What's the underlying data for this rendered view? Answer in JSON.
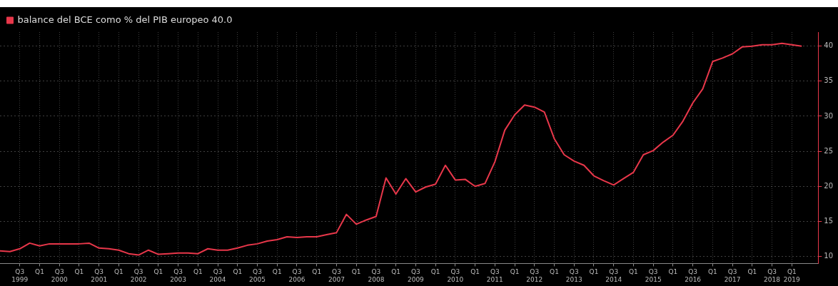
{
  "chart_data": {
    "type": "line",
    "legend": "top left",
    "grid": true,
    "marker": "none",
    "line_style": "solid",
    "series": [
      {
        "name": "balance del BCE como % del PIB europeo 40.0",
        "color": "#e8374a",
        "x": [
          "1999-01",
          "1999-04",
          "1999-07",
          "1999-10",
          "2000-01",
          "2000-04",
          "2000-07",
          "2000-10",
          "2001-01",
          "2001-04",
          "2001-07",
          "2001-10",
          "2002-01",
          "2002-04",
          "2002-07",
          "2002-10",
          "2003-01",
          "2003-04",
          "2003-07",
          "2003-10",
          "2004-01",
          "2004-04",
          "2004-07",
          "2004-10",
          "2005-01",
          "2005-04",
          "2005-07",
          "2005-10",
          "2006-01",
          "2006-04",
          "2006-07",
          "2006-10",
          "2007-01",
          "2007-04",
          "2007-07",
          "2007-10",
          "2008-01",
          "2008-04",
          "2008-07",
          "2008-10",
          "2009-01",
          "2009-04",
          "2009-07",
          "2009-10",
          "2010-01",
          "2010-04",
          "2010-07",
          "2010-10",
          "2011-01",
          "2011-04",
          "2011-07",
          "2011-10",
          "2012-01",
          "2012-04",
          "2012-07",
          "2012-10",
          "2013-01",
          "2013-04",
          "2013-07",
          "2013-10",
          "2014-01",
          "2014-04",
          "2014-07",
          "2014-10",
          "2015-01",
          "2015-04",
          "2015-07",
          "2015-10",
          "2016-01",
          "2016-04",
          "2016-07",
          "2016-10",
          "2017-01",
          "2017-04",
          "2017-07",
          "2017-10",
          "2018-01",
          "2018-04",
          "2018-07",
          "2018-10",
          "2019-01",
          "2019-04"
        ],
        "values": [
          10.8,
          10.7,
          11.1,
          11.9,
          11.5,
          11.8,
          11.8,
          11.8,
          11.8,
          11.9,
          11.2,
          11.1,
          10.9,
          10.4,
          10.2,
          10.9,
          10.3,
          10.4,
          10.5,
          10.5,
          10.4,
          11.1,
          10.9,
          10.9,
          11.2,
          11.6,
          11.8,
          12.2,
          12.4,
          12.8,
          12.7,
          12.8,
          12.8,
          13.1,
          13.4,
          16.0,
          14.6,
          15.2,
          15.7,
          21.2,
          18.9,
          21.1,
          19.2,
          19.9,
          20.3,
          23.0,
          20.9,
          21.0,
          20.0,
          20.4,
          23.5,
          28.0,
          30.2,
          31.6,
          31.3,
          30.6,
          26.8,
          24.5,
          23.6,
          23.0,
          21.5,
          20.8,
          20.2,
          21.1,
          22.0,
          24.5,
          25.1,
          26.3,
          27.3,
          29.3,
          31.9,
          33.9,
          37.8,
          38.3,
          38.9,
          39.9,
          40.0,
          40.2,
          40.2,
          40.4,
          40.2,
          40.0
        ]
      }
    ],
    "xlim": [
      "1999-01",
      "2019-09"
    ],
    "xticks": [
      {
        "value": "1999-07",
        "label": "Q3\n1999"
      },
      {
        "value": "2000-01",
        "label": "Q1"
      },
      {
        "value": "2000-07",
        "label": "Q3\n2000"
      },
      {
        "value": "2001-01",
        "label": "Q1"
      },
      {
        "value": "2001-07",
        "label": "Q3\n2001"
      },
      {
        "value": "2002-01",
        "label": "Q1"
      },
      {
        "value": "2002-07",
        "label": "Q3\n2002"
      },
      {
        "value": "2003-01",
        "label": "Q1"
      },
      {
        "value": "2003-07",
        "label": "Q3\n2003"
      },
      {
        "value": "2004-01",
        "label": "Q1"
      },
      {
        "value": "2004-07",
        "label": "Q3\n2004"
      },
      {
        "value": "2005-01",
        "label": "Q1"
      },
      {
        "value": "2005-07",
        "label": "Q3\n2005"
      },
      {
        "value": "2006-01",
        "label": "Q1"
      },
      {
        "value": "2006-07",
        "label": "Q3\n2006"
      },
      {
        "value": "2007-01",
        "label": "Q1"
      },
      {
        "value": "2007-07",
        "label": "Q3\n2007"
      },
      {
        "value": "2008-01",
        "label": "Q1"
      },
      {
        "value": "2008-07",
        "label": "Q3\n2008"
      },
      {
        "value": "2009-01",
        "label": "Q1"
      },
      {
        "value": "2009-07",
        "label": "Q3\n2009"
      },
      {
        "value": "2010-01",
        "label": "Q1"
      },
      {
        "value": "2010-07",
        "label": "Q3\n2010"
      },
      {
        "value": "2011-01",
        "label": "Q1"
      },
      {
        "value": "2011-07",
        "label": "Q3\n2011"
      },
      {
        "value": "2012-01",
        "label": "Q1"
      },
      {
        "value": "2012-07",
        "label": "Q3\n2012"
      },
      {
        "value": "2013-01",
        "label": "Q1"
      },
      {
        "value": "2013-07",
        "label": "Q3\n2013"
      },
      {
        "value": "2014-01",
        "label": "Q1"
      },
      {
        "value": "2014-07",
        "label": "Q3\n2014"
      },
      {
        "value": "2015-01",
        "label": "Q1"
      },
      {
        "value": "2015-07",
        "label": "Q3\n2015"
      },
      {
        "value": "2016-01",
        "label": "Q1"
      },
      {
        "value": "2016-07",
        "label": "Q3\n2016"
      },
      {
        "value": "2017-01",
        "label": "Q1"
      },
      {
        "value": "2017-07",
        "label": "Q3\n2017"
      },
      {
        "value": "2018-01",
        "label": "Q1"
      },
      {
        "value": "2018-07",
        "label": "Q3\n2018"
      },
      {
        "value": "2019-01",
        "label": "Q1\n2019"
      }
    ],
    "ylim": [
      9,
      42
    ],
    "yticks": [
      10,
      15,
      20,
      25,
      30,
      35,
      40
    ]
  }
}
